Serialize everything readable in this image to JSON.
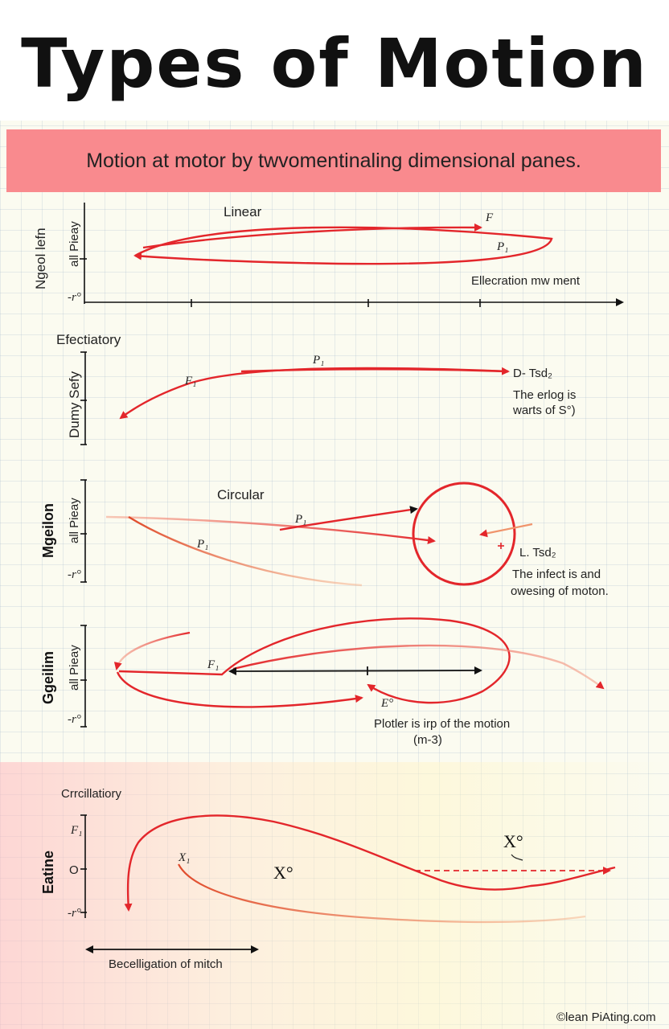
{
  "title": "Types of Motion",
  "banner": "Motion at motor by twvomentinaling dimensional panes.",
  "panels": [
    {
      "heading": "Linear",
      "ylabel_outer": "Ngeol lefn",
      "ylabel_inner": "all Pieay",
      "tick_bottom": "-r°",
      "labels": [
        "F",
        "P₁",
        "Ellecration mw ment"
      ]
    },
    {
      "heading": "Efectiatory",
      "ylabel": "Dumy Sefy",
      "labels": [
        "P₁",
        "F₁",
        "D- Tsd₂",
        "The erlog is",
        "warts of S°)"
      ]
    },
    {
      "heading": "Circular",
      "ylabel_outer": "Mgeilon",
      "ylabel_inner": "all Pieay",
      "tick_bottom": "-r°",
      "labels": [
        "P₁",
        "P₁",
        "L. Tsd₂",
        "The infect is and",
        "owesing of moton."
      ]
    },
    {
      "heading": "",
      "ylabel_outer": "Ggeilim",
      "ylabel_inner": "all Pieay",
      "tick_bottom": "-r°",
      "labels": [
        "F₁",
        "E°",
        "Plotler is irp of the motion",
        "(m-3)"
      ]
    },
    {
      "heading": "Crrcillatiory",
      "ylabel": "Eatine",
      "tick_top": "F₁",
      "tick_mid": "O",
      "tick_bottom": "-r°",
      "labels": [
        "X₁",
        "X°",
        "X°",
        "Becelligation of mitch"
      ]
    }
  ],
  "footer": "©lean PiAting.com",
  "colors": {
    "accent": "#e3262b",
    "banner": "#f98a8e"
  }
}
